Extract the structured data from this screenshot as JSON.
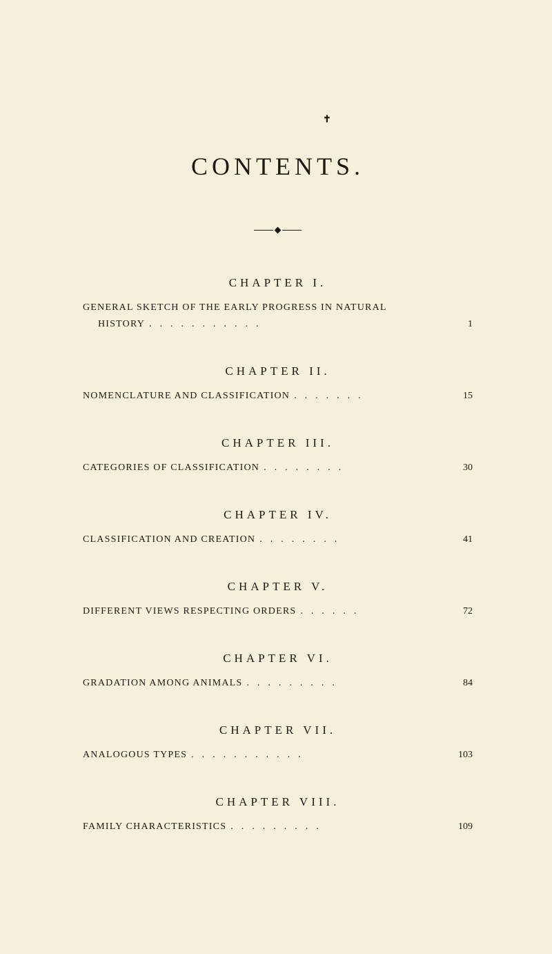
{
  "background_color": "#f5f0dc",
  "text_color": "#1a1a10",
  "cross_mark": "✝",
  "title": "CONTENTS.",
  "chapters": [
    {
      "heading": "CHAPTER I.",
      "entry_line1": "GENERAL SKETCH OF THE EARLY PROGRESS IN NATURAL",
      "entry_line2": "HISTORY",
      "page": "1",
      "two_line": true
    },
    {
      "heading": "CHAPTER II.",
      "entry": "NOMENCLATURE AND CLASSIFICATION",
      "page": "15"
    },
    {
      "heading": "CHAPTER III.",
      "entry": "CATEGORIES OF CLASSIFICATION",
      "page": "30"
    },
    {
      "heading": "CHAPTER IV.",
      "entry": "CLASSIFICATION AND CREATION",
      "page": "41"
    },
    {
      "heading": "CHAPTER V.",
      "entry": "DIFFERENT VIEWS RESPECTING ORDERS",
      "page": "72"
    },
    {
      "heading": "CHAPTER VI.",
      "entry": "GRADATION AMONG ANIMALS",
      "page": "84"
    },
    {
      "heading": "CHAPTER VII.",
      "entry": "ANALOGOUS TYPES",
      "page": "103"
    },
    {
      "heading": "CHAPTER VIII.",
      "entry": "FAMILY CHARACTERISTICS",
      "page": "109"
    }
  ]
}
